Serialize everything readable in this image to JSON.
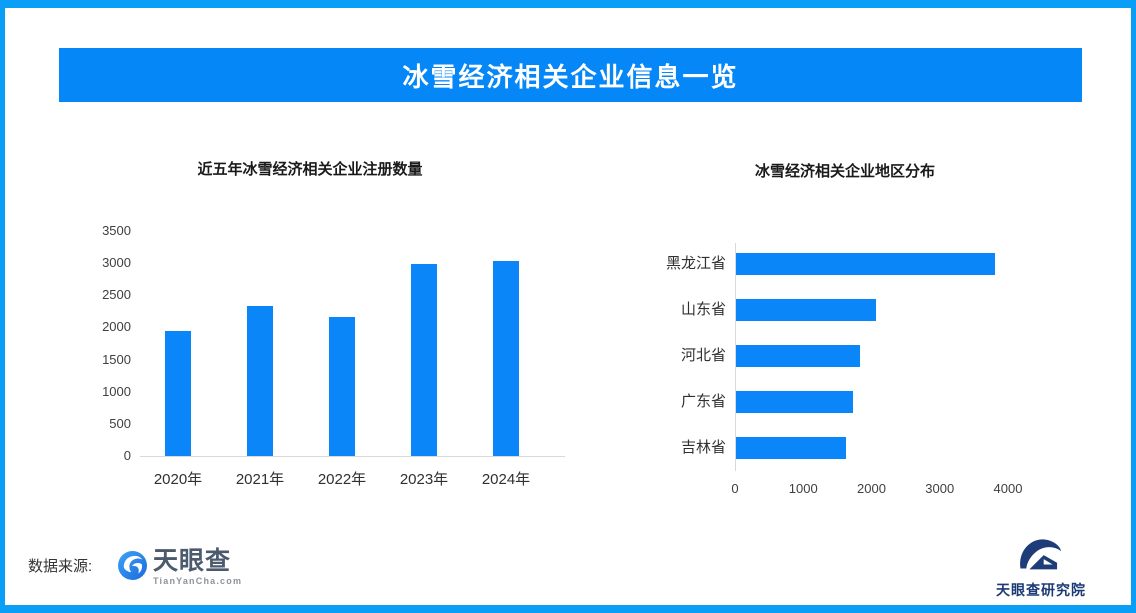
{
  "banner": {
    "title": "冰雪经济相关企业信息一览"
  },
  "chart_data": [
    {
      "type": "bar",
      "orientation": "vertical",
      "title": "近五年冰雪经济相关企业注册数量",
      "categories": [
        "2020年",
        "2021年",
        "2022年",
        "2023年",
        "2024年"
      ],
      "values": [
        1950,
        2330,
        2160,
        2980,
        3040
      ],
      "xlabel": "",
      "ylabel": "",
      "ylim": [
        0,
        3500
      ],
      "yticks": [
        0,
        500,
        1000,
        1500,
        2000,
        2500,
        3000,
        3500
      ],
      "grid": false,
      "legend": false,
      "bar_color": "#0b86f8"
    },
    {
      "type": "bar",
      "orientation": "horizontal",
      "title": "冰雪经济相关企业地区分布",
      "categories": [
        "黑龙江省",
        "山东省",
        "河北省",
        "广东省",
        "吉林省"
      ],
      "values": [
        3800,
        2050,
        1810,
        1720,
        1610
      ],
      "xlabel": "",
      "ylabel": "",
      "xlim": [
        0,
        4000
      ],
      "xticks": [
        0,
        1000,
        2000,
        3000,
        4000
      ],
      "grid": false,
      "legend": false,
      "bar_color": "#0b86f8"
    }
  ],
  "footer": {
    "source_label": "数据来源:",
    "tianyancha_name": "天眼查",
    "tianyancha_domain": "TianYanCha.com",
    "research_name": "天眼查研究院"
  },
  "colors": {
    "frame_border": "#0a9ef7",
    "banner_bg": "#0587f7",
    "bar_blue": "#0b86f8",
    "axis_line": "#d9d9d9"
  }
}
